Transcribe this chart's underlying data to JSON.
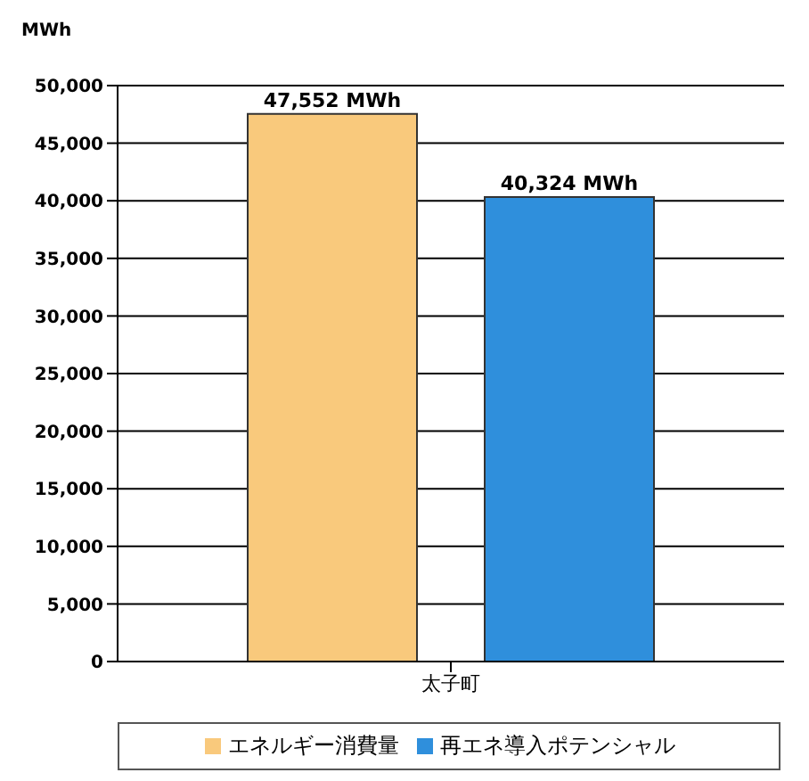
{
  "chart_data": {
    "type": "bar",
    "ylabel": "MWh",
    "categories": [
      "太子町"
    ],
    "series": [
      {
        "name": "エネルギー消費量",
        "color": "#f9c97c",
        "values": [
          47552
        ],
        "value_labels": [
          "47,552 MWh"
        ]
      },
      {
        "name": "再エネ導入ポテンシャル",
        "color": "#2f8fdc",
        "values": [
          40324
        ],
        "value_labels": [
          "40,324 MWh"
        ]
      }
    ],
    "ylim": [
      0,
      50000
    ],
    "yticks": [
      0,
      {
        "value": 5000,
        "label": "5,000"
      },
      {
        "value": 10000,
        "label": "10,000"
      },
      {
        "value": 15000,
        "label": "15,000"
      },
      {
        "value": 20000,
        "label": "20,000"
      },
      {
        "value": 25000,
        "label": "25,000"
      },
      {
        "value": 30000,
        "label": "30,000"
      },
      {
        "value": 35000,
        "label": "35,000"
      },
      {
        "value": 40000,
        "label": "40,000"
      },
      {
        "value": 45000,
        "label": "45,000"
      },
      {
        "value": 50000,
        "label": "50,000"
      }
    ],
    "grid": "y",
    "legend": "bottom"
  }
}
